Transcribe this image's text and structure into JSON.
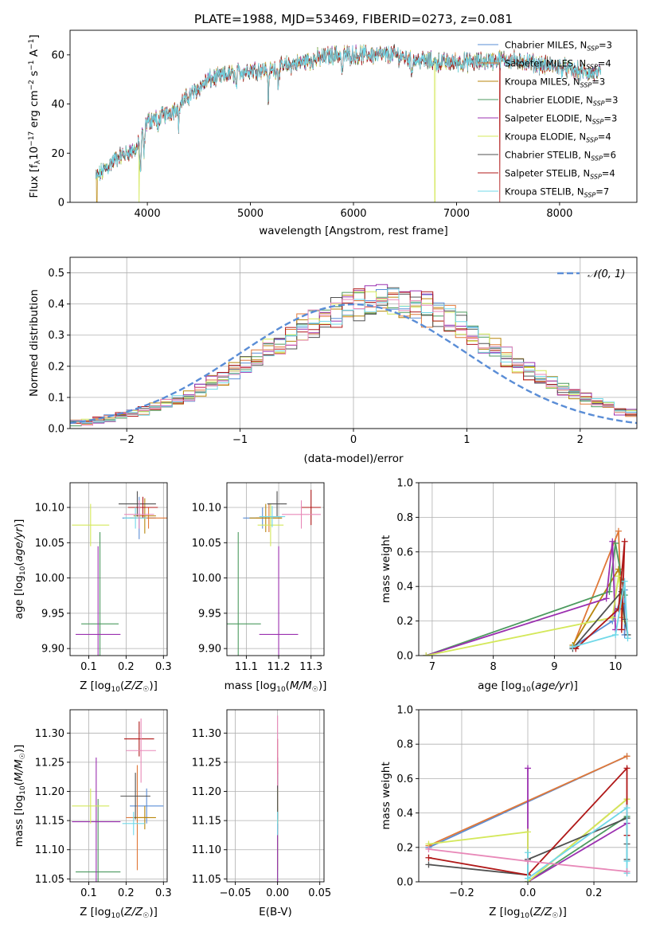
{
  "chart_data": [
    {
      "id": "spec",
      "type": "line",
      "title": "PLATE=1988, MJD=53469, FIBERID=0273, z=0.081",
      "xlabel": "wavelength [Angstrom, rest frame]",
      "ylabel": "Flux [f_λ10^-17 erg cm^-2 s^-1 A^-1]",
      "xlim": [
        3250,
        8750
      ],
      "ylim": [
        0,
        70
      ],
      "xticks": [
        4000,
        5000,
        6000,
        7000,
        8000
      ],
      "yticks": [
        0,
        20,
        40,
        60
      ],
      "legend_position": "top-right",
      "data_wavelength_range": [
        3500,
        8400
      ],
      "continuum": [
        [
          3500,
          10
        ],
        [
          3700,
          18
        ],
        [
          3900,
          22
        ],
        [
          4000,
          33
        ],
        [
          4200,
          36
        ],
        [
          4400,
          43
        ],
        [
          4600,
          50
        ],
        [
          4800,
          52
        ],
        [
          5000,
          54
        ],
        [
          5200,
          54
        ],
        [
          5400,
          56
        ],
        [
          5600,
          58
        ],
        [
          5800,
          60
        ],
        [
          6000,
          60
        ],
        [
          6200,
          60
        ],
        [
          6400,
          60
        ],
        [
          6600,
          58
        ],
        [
          6800,
          57
        ],
        [
          7000,
          57
        ],
        [
          7200,
          57
        ],
        [
          7400,
          58
        ],
        [
          7600,
          58
        ],
        [
          7800,
          56
        ],
        [
          8000,
          55
        ],
        [
          8200,
          53
        ],
        [
          8400,
          52
        ]
      ],
      "absorption_features": [
        [
          3933,
          -14
        ],
        [
          3968,
          -10
        ],
        [
          4102,
          -6
        ],
        [
          4304,
          -8
        ],
        [
          4861,
          -6
        ],
        [
          5175,
          -12
        ],
        [
          5270,
          -6
        ],
        [
          5890,
          -8
        ],
        [
          6563,
          -6
        ],
        [
          7600,
          -4
        ]
      ],
      "dropouts": [
        [
          3510,
          "Kroupa MILES"
        ],
        [
          3920,
          "Kroupa ELODIE"
        ],
        [
          6790,
          "Kroupa ELODIE"
        ],
        [
          7420,
          "Salpeter STELIB"
        ]
      ],
      "series": [
        {
          "name": "Chabrier MILES, N_SSP=3",
          "color": "#5a8dd6"
        },
        {
          "name": "Salpeter MILES, N_SSP=4",
          "color": "#e07838"
        },
        {
          "name": "Kroupa MILES, N_SSP=3",
          "color": "#b8860b"
        },
        {
          "name": "Chabrier ELODIE, N_SSP=3",
          "color": "#4c9a5f"
        },
        {
          "name": "Salpeter ELODIE, N_SSP=3",
          "color": "#9b30b0"
        },
        {
          "name": "Kroupa ELODIE, N_SSP=4",
          "color": "#d4e85a"
        },
        {
          "name": "Chabrier STELIB, N_SSP=6",
          "color": "#505050"
        },
        {
          "name": "Salpeter STELIB, N_SSP=4",
          "color": "#b01818"
        },
        {
          "name": "Kroupa STELIB, N_SSP=7",
          "color": "#70d8e8"
        }
      ]
    },
    {
      "id": "hist",
      "type": "bar",
      "xlabel": "(data-model)/error",
      "ylabel": "Normed distribution",
      "xlim": [
        -2.5,
        2.5
      ],
      "ylim": [
        0,
        0.55
      ],
      "xticks": [
        -2,
        -1,
        0,
        1,
        2
      ],
      "yticks": [
        0.0,
        0.1,
        0.2,
        0.3,
        0.4,
        0.5
      ],
      "grid": true,
      "legend_position": "top-right",
      "reference_curve": {
        "name": "𝒩(0, 1)",
        "color": "#5a8dd6",
        "style": "dashed"
      },
      "bin_width": 0.1,
      "x_start": -2.5,
      "base_density": [
        0.018,
        0.022,
        0.028,
        0.034,
        0.041,
        0.049,
        0.058,
        0.068,
        0.08,
        0.093,
        0.108,
        0.125,
        0.143,
        0.163,
        0.183,
        0.205,
        0.228,
        0.251,
        0.275,
        0.298,
        0.321,
        0.342,
        0.362,
        0.379,
        0.393,
        0.404,
        0.411,
        0.414,
        0.412,
        0.406,
        0.396,
        0.382,
        0.365,
        0.345,
        0.323,
        0.3,
        0.276,
        0.252,
        0.229,
        0.206,
        0.184,
        0.164,
        0.145,
        0.127,
        0.11,
        0.095,
        0.082,
        0.07,
        0.058,
        0.048
      ],
      "series_colors": [
        "#5a8dd6",
        "#e07838",
        "#b8860b",
        "#4c9a5f",
        "#9b30b0",
        "#d4e85a",
        "#505050",
        "#b01818",
        "#70d8e8",
        "#e888b8"
      ]
    },
    {
      "id": "zage",
      "type": "scatter",
      "xlabel": "Z [log10(Z/Z☉)]",
      "ylabel": "age [log10(age/yr)]",
      "xlim": [
        0.05,
        0.31
      ],
      "ylim": [
        9.89,
        10.135
      ],
      "xticks": [
        0.1,
        0.2,
        0.3
      ],
      "yticks": [
        9.9,
        9.95,
        10.0,
        10.05,
        10.1
      ],
      "grid": true,
      "points": [
        {
          "x": 0.235,
          "y": 10.085,
          "xerr": 0.045,
          "yerr": 0.03,
          "color": "#5a8dd6"
        },
        {
          "x": 0.26,
          "y": 10.085,
          "xerr": 0.05,
          "yerr": 0.015,
          "color": "#e07838"
        },
        {
          "x": 0.25,
          "y": 10.088,
          "xerr": 0.03,
          "yerr": 0.025,
          "color": "#b8860b"
        },
        {
          "x": 0.13,
          "y": 9.935,
          "xerr": 0.05,
          "yerr": 0.13,
          "color": "#4c9a5f"
        },
        {
          "x": 0.125,
          "y": 9.92,
          "xerr": 0.06,
          "yerr": 0.125,
          "color": "#9b30b0"
        },
        {
          "x": 0.105,
          "y": 10.075,
          "xerr": 0.05,
          "yerr": 0.03,
          "color": "#d4e85a"
        },
        {
          "x": 0.23,
          "y": 10.105,
          "xerr": 0.05,
          "yerr": 0.018,
          "color": "#505050"
        },
        {
          "x": 0.245,
          "y": 10.1,
          "xerr": 0.04,
          "yerr": 0.015,
          "color": "#b01818"
        },
        {
          "x": 0.225,
          "y": 10.085,
          "xerr": 0.03,
          "yerr": 0.015,
          "color": "#70d8e8"
        },
        {
          "x": 0.235,
          "y": 10.09,
          "xerr": 0.04,
          "yerr": 0.02,
          "color": "#e888b8"
        }
      ]
    },
    {
      "id": "massage",
      "type": "scatter",
      "xlabel": "mass [log10(M/M☉)]",
      "ylabel": "",
      "xlim": [
        11.04,
        11.34
      ],
      "ylim": [
        9.89,
        10.135
      ],
      "xticks": [
        11.1,
        11.2,
        11.3
      ],
      "yticks": [
        9.9,
        9.95,
        10.0,
        10.05,
        10.1
      ],
      "grid": true,
      "points": [
        {
          "x": 11.15,
          "y": 10.085,
          "xerr": 0.06,
          "yerr": 0.015,
          "color": "#5a8dd6"
        },
        {
          "x": 11.17,
          "y": 10.085,
          "xerr": 0.04,
          "yerr": 0.02,
          "color": "#e07838"
        },
        {
          "x": 11.16,
          "y": 10.085,
          "xerr": 0.05,
          "yerr": 0.02,
          "color": "#b8860b"
        },
        {
          "x": 11.075,
          "y": 9.935,
          "xerr": 0.07,
          "yerr": 0.13,
          "color": "#4c9a5f"
        },
        {
          "x": 11.2,
          "y": 9.92,
          "xerr": 0.06,
          "yerr": 0.125,
          "color": "#9b30b0"
        },
        {
          "x": 11.175,
          "y": 10.075,
          "xerr": 0.04,
          "yerr": 0.03,
          "color": "#d4e85a"
        },
        {
          "x": 11.195,
          "y": 10.105,
          "xerr": 0.03,
          "yerr": 0.018,
          "color": "#505050"
        },
        {
          "x": 11.3,
          "y": 10.1,
          "xerr": 0.03,
          "yerr": 0.025,
          "color": "#b01818"
        },
        {
          "x": 11.18,
          "y": 10.087,
          "xerr": 0.04,
          "yerr": 0.015,
          "color": "#70d8e8"
        },
        {
          "x": 11.27,
          "y": 10.09,
          "xerr": 0.06,
          "yerr": 0.02,
          "color": "#e888b8"
        }
      ]
    },
    {
      "id": "agew",
      "type": "line",
      "xlabel": "age [log10(age/yr)]",
      "ylabel": "mass weight",
      "xlim": [
        6.78,
        10.35
      ],
      "ylim": [
        0,
        1
      ],
      "xticks": [
        7,
        8,
        9,
        10
      ],
      "yticks": [
        0.0,
        0.2,
        0.4,
        0.6,
        0.8,
        1.0
      ],
      "grid": true,
      "series": [
        {
          "color": "#5a8dd6",
          "points": [
            [
              9.3,
              0.05
            ],
            [
              9.95,
              0.2
            ],
            [
              10.15,
              0.38
            ],
            [
              10.15,
              0.12
            ]
          ]
        },
        {
          "color": "#e07838",
          "points": [
            [
              9.3,
              0.05
            ],
            [
              10.05,
              0.72
            ],
            [
              10.1,
              0.22
            ]
          ]
        },
        {
          "color": "#b8860b",
          "points": [
            [
              9.3,
              0.06
            ],
            [
              10.05,
              0.5
            ],
            [
              10.1,
              0.3
            ]
          ]
        },
        {
          "color": "#4c9a5f",
          "points": [
            [
              6.9,
              0.0
            ],
            [
              9.9,
              0.37
            ],
            [
              10.0,
              0.65
            ],
            [
              10.15,
              0.35
            ]
          ]
        },
        {
          "color": "#9b30b0",
          "points": [
            [
              6.9,
              0.0
            ],
            [
              9.85,
              0.33
            ],
            [
              9.95,
              0.66
            ],
            [
              10.0,
              0.15
            ]
          ]
        },
        {
          "color": "#d4e85a",
          "points": [
            [
              6.9,
              0.0
            ],
            [
              9.95,
              0.22
            ],
            [
              10.05,
              0.46
            ],
            [
              10.15,
              0.2
            ]
          ]
        },
        {
          "color": "#505050",
          "points": [
            [
              9.3,
              0.04
            ],
            [
              10.1,
              0.37
            ],
            [
              10.15,
              0.21
            ],
            [
              10.2,
              0.12
            ]
          ]
        },
        {
          "color": "#b01818",
          "points": [
            [
              9.35,
              0.04
            ],
            [
              10.05,
              0.27
            ],
            [
              10.15,
              0.66
            ],
            [
              10.1,
              0.15
            ]
          ]
        },
        {
          "color": "#70d8e8",
          "points": [
            [
              9.3,
              0.05
            ],
            [
              10.0,
              0.12
            ],
            [
              10.15,
              0.43
            ],
            [
              10.2,
              0.1
            ]
          ]
        }
      ]
    },
    {
      "id": "zmass",
      "type": "scatter",
      "xlabel": "Z [log10(Z/Z☉)]",
      "ylabel": "mass [log10(M/M☉)]",
      "xlim": [
        0.05,
        0.31
      ],
      "ylim": [
        11.045,
        11.34
      ],
      "xticks": [
        0.1,
        0.2,
        0.3
      ],
      "yticks": [
        11.05,
        11.1,
        11.15,
        11.2,
        11.25,
        11.3
      ],
      "grid": true,
      "points": [
        {
          "x": 0.255,
          "y": 11.175,
          "xerr": 0.045,
          "yerr": 0.03,
          "color": "#5a8dd6"
        },
        {
          "x": 0.23,
          "y": 11.155,
          "xerr": 0.03,
          "yerr": 0.09,
          "color": "#e07838"
        },
        {
          "x": 0.25,
          "y": 11.155,
          "xerr": 0.03,
          "yerr": 0.02,
          "color": "#b8860b"
        },
        {
          "x": 0.125,
          "y": 11.062,
          "xerr": 0.06,
          "yerr": 0.125,
          "color": "#4c9a5f"
        },
        {
          "x": 0.12,
          "y": 11.148,
          "xerr": 0.065,
          "yerr": 0.11,
          "color": "#9b30b0"
        },
        {
          "x": 0.105,
          "y": 11.175,
          "xerr": 0.05,
          "yerr": 0.03,
          "color": "#d4e85a"
        },
        {
          "x": 0.225,
          "y": 11.192,
          "xerr": 0.04,
          "yerr": 0.04,
          "color": "#505050"
        },
        {
          "x": 0.235,
          "y": 11.29,
          "xerr": 0.04,
          "yerr": 0.03,
          "color": "#b01818"
        },
        {
          "x": 0.22,
          "y": 11.145,
          "xerr": 0.03,
          "yerr": 0.02,
          "color": "#70d8e8"
        },
        {
          "x": 0.24,
          "y": 11.27,
          "xerr": 0.04,
          "yerr": 0.055,
          "color": "#e888b8"
        }
      ]
    },
    {
      "id": "ebvmass",
      "type": "scatter",
      "xlabel": "E(B-V)",
      "ylabel": "",
      "xlim": [
        -0.06,
        0.055
      ],
      "ylim": [
        11.045,
        11.34
      ],
      "xticks": [
        -0.05,
        0.0,
        0.05
      ],
      "yticks": [
        11.05,
        11.1,
        11.15,
        11.2,
        11.25,
        11.3
      ],
      "grid": true,
      "points": [
        {
          "x": 0.0,
          "y": 11.175,
          "yerr": 0.03,
          "color": "#5a8dd6"
        },
        {
          "x": 0.0,
          "y": 11.155,
          "yerr": 0.09,
          "color": "#e07838"
        },
        {
          "x": 0.0,
          "y": 11.155,
          "yerr": 0.02,
          "color": "#b8860b"
        },
        {
          "x": 0.0,
          "y": 11.062,
          "yerr": 0.11,
          "color": "#4c9a5f"
        },
        {
          "x": 0.0,
          "y": 11.148,
          "yerr": 0.11,
          "color": "#9b30b0"
        },
        {
          "x": 0.0,
          "y": 11.175,
          "yerr": 0.03,
          "color": "#d4e85a"
        },
        {
          "x": 0.0,
          "y": 11.192,
          "yerr": 0.04,
          "color": "#505050"
        },
        {
          "x": 0.0,
          "y": 11.26,
          "yerr": 0.03,
          "color": "#b01818"
        },
        {
          "x": 0.0,
          "y": 11.145,
          "yerr": 0.02,
          "color": "#70d8e8"
        },
        {
          "x": 0.0,
          "y": 11.27,
          "yerr": 0.06,
          "color": "#e888b8"
        }
      ]
    },
    {
      "id": "zw",
      "type": "line",
      "xlabel": "Z [log10(Z/Z☉)]",
      "ylabel": "mass weight",
      "xlim": [
        -0.33,
        0.33
      ],
      "ylim": [
        0,
        1
      ],
      "xticks": [
        -0.2,
        0.0,
        0.2
      ],
      "yticks": [
        0.0,
        0.2,
        0.4,
        0.6,
        0.8,
        1.0
      ],
      "grid": true,
      "series": [
        {
          "color": "#5a8dd6",
          "points": [
            [
              -0.3,
              0.2
            ],
            [
              0.3,
              0.73
            ]
          ]
        },
        {
          "color": "#e07838",
          "points": [
            [
              -0.3,
              0.21
            ],
            [
              0.3,
              0.73
            ]
          ]
        },
        {
          "color": "#b8860b",
          "points": [
            [
              0.0,
              0.0
            ],
            [
              0.3,
              0.48
            ]
          ]
        },
        {
          "color": "#4c9a5f",
          "points": [
            [
              0.0,
              0.0
            ],
            [
              0.3,
              0.38
            ]
          ]
        },
        {
          "color": "#9b30b0",
          "points": [
            [
              0.0,
              0.66
            ],
            [
              0.0,
              0.0
            ],
            [
              0.3,
              0.34
            ]
          ]
        },
        {
          "color": "#d4e85a",
          "points": [
            [
              -0.3,
              0.22
            ],
            [
              0.0,
              0.29
            ],
            [
              0.0,
              0.0
            ],
            [
              0.3,
              0.48
            ]
          ]
        },
        {
          "color": "#505050",
          "points": [
            [
              -0.3,
              0.1
            ],
            [
              0.0,
              0.04
            ],
            [
              0.0,
              0.13
            ],
            [
              0.3,
              0.37
            ],
            [
              0.3,
              0.22
            ],
            [
              0.3,
              0.13
            ]
          ]
        },
        {
          "color": "#b01818",
          "points": [
            [
              -0.3,
              0.14
            ],
            [
              0.0,
              0.04
            ],
            [
              0.3,
              0.66
            ],
            [
              0.3,
              0.27
            ]
          ]
        },
        {
          "color": "#70d8e8",
          "points": [
            [
              0.0,
              0.17
            ],
            [
              0.0,
              0.02
            ],
            [
              0.3,
              0.43
            ],
            [
              0.3,
              0.12
            ],
            [
              0.3,
              0.05
            ]
          ]
        },
        {
          "color": "#e888b8",
          "points": [
            [
              -0.3,
              0.19
            ],
            [
              0.0,
              0.12
            ],
            [
              0.3,
              0.06
            ]
          ]
        }
      ]
    }
  ]
}
